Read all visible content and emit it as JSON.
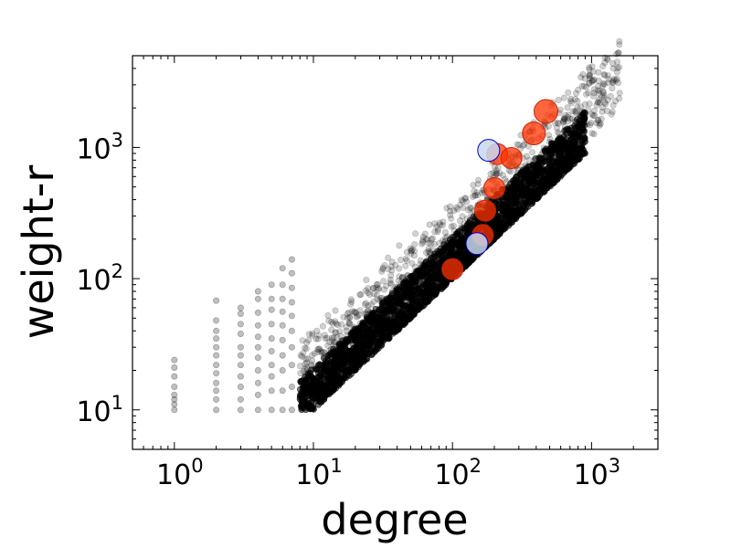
{
  "chart_data": {
    "type": "scatter",
    "title": "",
    "xlabel": "degree",
    "ylabel": "weight-r",
    "xscale": "log",
    "yscale": "log",
    "xlim": [
      0.5,
      3000
    ],
    "ylim": [
      5,
      5000
    ],
    "x_ticks": [
      {
        "value": 1,
        "base": "10",
        "exp": "0"
      },
      {
        "value": 10,
        "base": "10",
        "exp": "1"
      },
      {
        "value": 100,
        "base": "10",
        "exp": "2"
      },
      {
        "value": 1000,
        "base": "10",
        "exp": "3"
      }
    ],
    "y_ticks": [
      {
        "value": 10,
        "base": "10",
        "exp": "1"
      },
      {
        "value": 100,
        "base": "10",
        "exp": "2"
      },
      {
        "value": 1000,
        "base": "10",
        "exp": "3"
      }
    ],
    "grid": false,
    "legend": "none",
    "series": [
      {
        "style": "background",
        "color": "#000000",
        "opacity": 0.18,
        "description_points": "dense cloud; for each degree d, weight-r ranges roughly from max(10, d) up to ~3*d",
        "points": [
          [
            1,
            10
          ],
          [
            1,
            11
          ],
          [
            1,
            12
          ],
          [
            1,
            13
          ],
          [
            1,
            15
          ],
          [
            1,
            18
          ],
          [
            1,
            21
          ],
          [
            1,
            24
          ],
          [
            2,
            10
          ],
          [
            2,
            12
          ],
          [
            2,
            14
          ],
          [
            2,
            16
          ],
          [
            2,
            19
          ],
          [
            2,
            22
          ],
          [
            2,
            26
          ],
          [
            2,
            30
          ],
          [
            2,
            35
          ],
          [
            2,
            40
          ],
          [
            2,
            48
          ],
          [
            2,
            68
          ],
          [
            3,
            10
          ],
          [
            3,
            12
          ],
          [
            3,
            15
          ],
          [
            3,
            18
          ],
          [
            3,
            22
          ],
          [
            3,
            26
          ],
          [
            3,
            30
          ],
          [
            3,
            38
          ],
          [
            3,
            45
          ],
          [
            3,
            54
          ],
          [
            3,
            60
          ],
          [
            4,
            10
          ],
          [
            4,
            13
          ],
          [
            4,
            16
          ],
          [
            4,
            20
          ],
          [
            4,
            25
          ],
          [
            4,
            30
          ],
          [
            4,
            36
          ],
          [
            4,
            44
          ],
          [
            4,
            55
          ],
          [
            4,
            70
          ],
          [
            4,
            80
          ],
          [
            5,
            10
          ],
          [
            5,
            14
          ],
          [
            5,
            18
          ],
          [
            5,
            22
          ],
          [
            5,
            28
          ],
          [
            5,
            35
          ],
          [
            5,
            45
          ],
          [
            5,
            58
          ],
          [
            5,
            70
          ],
          [
            5,
            90
          ],
          [
            6,
            10
          ],
          [
            6,
            14
          ],
          [
            6,
            20
          ],
          [
            6,
            26
          ],
          [
            6,
            34
          ],
          [
            6,
            44
          ],
          [
            6,
            56
          ],
          [
            6,
            70
          ],
          [
            6,
            90
          ],
          [
            6,
            120
          ],
          [
            7,
            10
          ],
          [
            7,
            15
          ],
          [
            7,
            22
          ],
          [
            7,
            30
          ],
          [
            7,
            40
          ],
          [
            7,
            52
          ],
          [
            7,
            66
          ],
          [
            7,
            85
          ],
          [
            7,
            110
          ],
          [
            7,
            140
          ]
        ]
      },
      {
        "style": "highlight-red",
        "color": "#ff3300",
        "stroke": "#cc2200",
        "opacity": 0.75,
        "points": [
          [
            100,
            118
          ],
          [
            165,
            215
          ],
          [
            172,
            330
          ],
          [
            200,
            490
          ],
          [
            210,
            890
          ],
          [
            265,
            830
          ],
          [
            385,
            1280
          ],
          [
            470,
            1880
          ]
        ]
      },
      {
        "style": "highlight-blue",
        "color": "#c8d8f0",
        "stroke": "#0000cc",
        "opacity": 0.85,
        "points": [
          [
            150,
            185
          ],
          [
            182,
            950
          ]
        ]
      }
    ]
  }
}
